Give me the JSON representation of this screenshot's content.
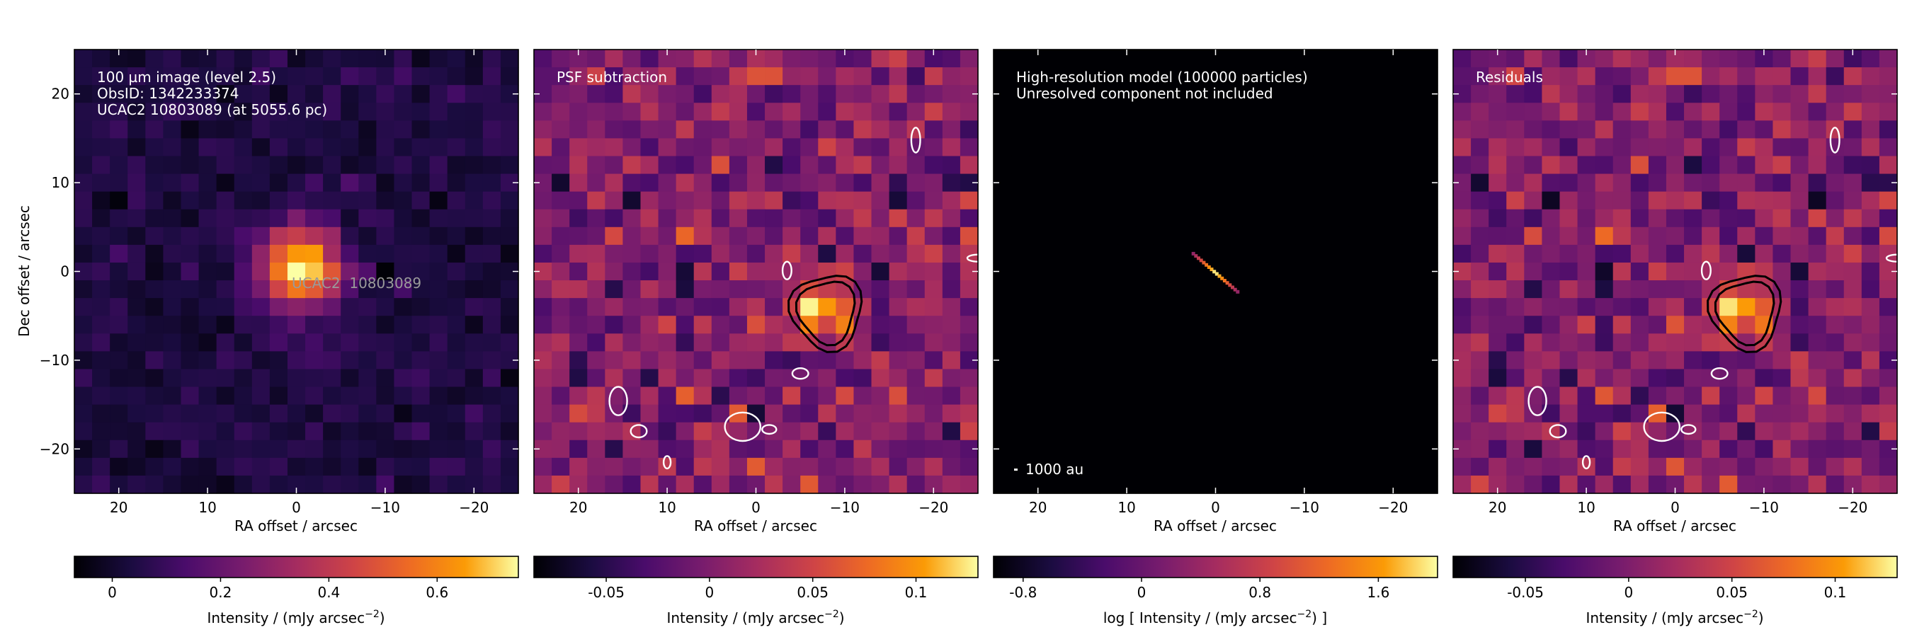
{
  "chart_data": [
    {
      "type": "heatmap",
      "annotation_lines": [
        "100 µm image (level 2.5)",
        "ObsID: 1342233374",
        "UCAC2 10803089 (at 5055.6 pc)"
      ],
      "source_label": "UCAC2  10803089",
      "xlabel": "RA offset / arcsec",
      "ylabel": "Dec offset / arcsec",
      "xlim": [
        25,
        -25
      ],
      "ylim": [
        -25,
        25
      ],
      "xticks": [
        20,
        10,
        0,
        -10,
        -20
      ],
      "yticks": [
        20,
        10,
        0,
        -10,
        -20
      ],
      "xtick_labels": [
        "20",
        "10",
        "0",
        "−10",
        "−20"
      ],
      "ytick_labels": [
        "20",
        "10",
        "0",
        "−10",
        "−20"
      ],
      "colormap": "inferno",
      "colorbar": {
        "range": [
          -0.07,
          0.75
        ],
        "ticks": [
          0,
          0.2,
          0.4,
          0.6
        ],
        "tick_labels": [
          "0",
          "0.2",
          "0.4",
          "0.6"
        ],
        "label_text": "Intensity / (mJy arcsec",
        "label_exp": "−2",
        "label_end": ")"
      },
      "features": [
        {
          "type": "point_source",
          "x": -0.5,
          "y": 0.5,
          "peak": 0.72,
          "sigma_arcsec": 3.2
        }
      ]
    },
    {
      "type": "heatmap",
      "annotation_lines": [
        "PSF subtraction"
      ],
      "xlabel": "RA offset / arcsec",
      "xlim": [
        25,
        -25
      ],
      "ylim": [
        -25,
        25
      ],
      "xticks": [
        20,
        10,
        0,
        -10,
        -20
      ],
      "xtick_labels": [
        "20",
        "10",
        "0",
        "−10",
        "−20"
      ],
      "colormap": "inferno",
      "colorbar": {
        "range": [
          -0.085,
          0.13
        ],
        "ticks": [
          -0.05,
          0,
          0.05,
          0.1
        ],
        "tick_labels": [
          "-0.05",
          "0",
          "0.05",
          "0.1"
        ],
        "label_text": "Intensity / (mJy arcsec",
        "label_exp": "−2",
        "label_end": ")"
      },
      "features": [
        {
          "type": "residual_blob",
          "x": -8,
          "y": -4.5,
          "peak": 0.12
        }
      ],
      "contours": [
        "black",
        "white"
      ]
    },
    {
      "type": "heatmap",
      "annotation_lines": [
        "High-resolution model (100000 particles)",
        "Unresolved component not included"
      ],
      "scale_bar_label": "1000 au",
      "xlabel": "RA offset / arcsec",
      "xlim": [
        25,
        -25
      ],
      "ylim": [
        -25,
        25
      ],
      "xticks": [
        20,
        10,
        0,
        -10,
        -20
      ],
      "xtick_labels": [
        "20",
        "10",
        "0",
        "−10",
        "−20"
      ],
      "colormap": "inferno",
      "colorbar": {
        "range": [
          -1.0,
          2.0
        ],
        "ticks": [
          -0.8,
          0,
          0.8,
          1.6
        ],
        "tick_labels": [
          "-0.8",
          "0",
          "0.8",
          "1.6"
        ],
        "label_text": "log [ Intensity / (mJy arcsec",
        "label_exp": "−2",
        "label_end": ") ]"
      },
      "features": [
        {
          "type": "edge_on_disc",
          "x_start": 2.5,
          "y_start": 2.0,
          "x_end": -2.5,
          "y_end": -2.3
        }
      ]
    },
    {
      "type": "heatmap",
      "annotation_lines": [
        "Residuals"
      ],
      "xlabel": "RA offset / arcsec",
      "xlim": [
        25,
        -25
      ],
      "ylim": [
        -25,
        25
      ],
      "xticks": [
        20,
        10,
        0,
        -10,
        -20
      ],
      "xtick_labels": [
        "20",
        "10",
        "0",
        "−10",
        "−20"
      ],
      "colormap": "inferno",
      "colorbar": {
        "range": [
          -0.085,
          0.13
        ],
        "ticks": [
          -0.05,
          0,
          0.05,
          0.1
        ],
        "tick_labels": [
          "-0.05",
          "0",
          "0.05",
          "0.1"
        ],
        "label_text": "Intensity / (mJy arcsec",
        "label_exp": "−2",
        "label_end": ")"
      },
      "features": [
        {
          "type": "residual_blob",
          "x": -8,
          "y": -4.5,
          "peak": 0.12
        }
      ],
      "contours": [
        "black",
        "white"
      ]
    }
  ]
}
